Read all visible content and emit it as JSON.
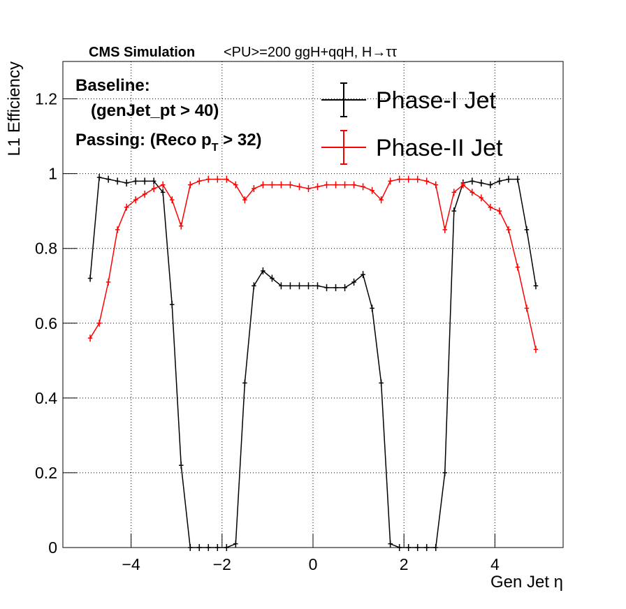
{
  "chart_data": {
    "type": "line",
    "title_bold": "CMS Simulation",
    "title": "<PU>=200  ggH+qqH, H→ττ",
    "annotation_baseline": "Baseline:",
    "annotation_cut": "(genJet_pt > 40)",
    "annotation_passing": [
      "Passing: (Reco p",
      "T",
      " > 32)"
    ],
    "x_label": "Gen Jet η",
    "y_label": "L1 Efficiency",
    "x": [
      -4.9,
      -4.7,
      -4.5,
      -4.3,
      -4.1,
      -3.9,
      -3.7,
      -3.5,
      -3.3,
      -3.1,
      -2.9,
      -2.7,
      -2.5,
      -2.3,
      -2.1,
      -1.9,
      -1.7,
      -1.5,
      -1.3,
      -1.1,
      -0.9,
      -0.7,
      -0.5,
      -0.3,
      -0.1,
      0.1,
      0.3,
      0.5,
      0.7,
      0.9,
      1.1,
      1.3,
      1.5,
      1.7,
      1.9,
      2.1,
      2.3,
      2.5,
      2.7,
      2.9,
      3.1,
      3.3,
      3.5,
      3.7,
      3.9,
      4.1,
      4.3,
      4.5,
      4.7,
      4.9
    ],
    "series": [
      {
        "name": "Phase-I Jet",
        "color": "#000000",
        "values": [
          0.72,
          0.99,
          0.985,
          0.98,
          0.975,
          0.98,
          0.98,
          0.98,
          0.95,
          0.65,
          0.22,
          0,
          0,
          0,
          0,
          0,
          0.01,
          0.44,
          0.7,
          0.74,
          0.72,
          0.7,
          0.7,
          0.7,
          0.7,
          0.7,
          0.695,
          0.695,
          0.695,
          0.71,
          0.73,
          0.64,
          0.44,
          0.01,
          0,
          0,
          0,
          0,
          0,
          0.2,
          0.9,
          0.975,
          0.98,
          0.975,
          0.97,
          0.98,
          0.985,
          0.985,
          0.85,
          0.7
        ]
      },
      {
        "name": "Phase-II Jet",
        "color": "#ff0000",
        "values": [
          0.56,
          0.6,
          0.71,
          0.85,
          0.91,
          0.93,
          0.945,
          0.96,
          0.97,
          0.93,
          0.86,
          0.97,
          0.98,
          0.985,
          0.985,
          0.985,
          0.97,
          0.93,
          0.96,
          0.97,
          0.97,
          0.97,
          0.97,
          0.965,
          0.96,
          0.965,
          0.97,
          0.97,
          0.97,
          0.97,
          0.965,
          0.955,
          0.93,
          0.98,
          0.985,
          0.985,
          0.985,
          0.98,
          0.97,
          0.85,
          0.95,
          0.97,
          0.95,
          0.935,
          0.91,
          0.9,
          0.85,
          0.75,
          0.64,
          0.53
        ]
      }
    ],
    "xlim": [
      -5.5,
      5.5
    ],
    "ylim": [
      0,
      1.3
    ],
    "xticks": [
      {
        "value": -4,
        "label": "−4"
      },
      {
        "value": -2,
        "label": "−2"
      },
      0,
      2,
      4
    ],
    "yticks": [
      0,
      0.2,
      0.4,
      0.6,
      0.8,
      1,
      1.2
    ],
    "grid": true,
    "legend": "top-right"
  }
}
